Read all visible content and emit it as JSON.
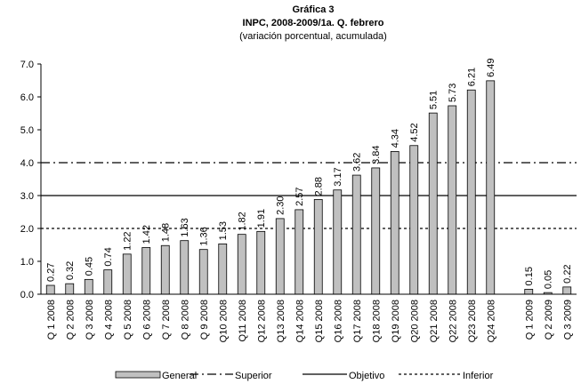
{
  "chart_data": {
    "type": "bar",
    "title": "Gráfica 3",
    "subtitle": "INPC, 2008-2009/1a. Q. febrero",
    "note": "(variación porcentual, acumulada)",
    "categories": [
      "Q 1 2008",
      "Q 2 2008",
      "Q 3 2008",
      "Q 4 2008",
      "Q 5 2008",
      "Q 6 2008",
      "Q 7 2008",
      "Q 8 2008",
      "Q 9 2008",
      "Q10 2008",
      "Q11 2008",
      "Q12 2008",
      "Q13 2008",
      "Q14 2008",
      "Q15 2008",
      "Q16 2008",
      "Q17 2008",
      "Q18 2008",
      "Q19 2008",
      "Q20 2008",
      "Q21 2008",
      "Q22 2008",
      "Q23 2008",
      "Q24 2008",
      null,
      "Q 1 2009",
      "Q 2 2009",
      "Q 3 2009"
    ],
    "series": [
      {
        "name": "General",
        "color": "#c0c0c0",
        "values": [
          0.27,
          0.32,
          0.45,
          0.74,
          1.22,
          1.42,
          1.48,
          1.63,
          1.36,
          1.53,
          1.82,
          1.91,
          2.3,
          2.57,
          2.88,
          3.17,
          3.62,
          3.84,
          4.34,
          4.52,
          5.51,
          5.73,
          6.21,
          6.49,
          null,
          0.15,
          0.05,
          0.22
        ],
        "value_labels": [
          "0.27",
          "0.32",
          "0.45",
          "0.74",
          "1.22",
          "1.42",
          "1.48",
          "1.63",
          "1.36",
          "1.53",
          "1.82",
          "1.91",
          "2.30",
          "2.57",
          "2.88",
          "3.17",
          "3.62",
          "3.84",
          "4.34",
          "4.52",
          "5.51",
          "5.73",
          "6.21",
          "6.49",
          null,
          "0.15",
          "0.05",
          "0.22"
        ]
      }
    ],
    "reference_lines": [
      {
        "name": "Superior",
        "value": 4,
        "style": "dashdot",
        "color": "#000000"
      },
      {
        "name": "Objetivo",
        "value": 3,
        "style": "solid",
        "color": "#000000"
      },
      {
        "name": "Inferior",
        "value": 2,
        "style": "dotted",
        "color": "#000000"
      }
    ],
    "ylim": [
      0,
      7
    ],
    "yticks": [
      {
        "value": 0,
        "label": "0.0"
      },
      {
        "value": 1,
        "label": "1.0"
      },
      {
        "value": 2,
        "label": "2.0"
      },
      {
        "value": 3,
        "label": "3.0"
      },
      {
        "value": 4,
        "label": "4.0"
      },
      {
        "value": 5,
        "label": "5.0"
      },
      {
        "value": 6,
        "label": "6.0"
      },
      {
        "value": 7,
        "label": "7.0"
      }
    ],
    "legend": "bottom"
  }
}
